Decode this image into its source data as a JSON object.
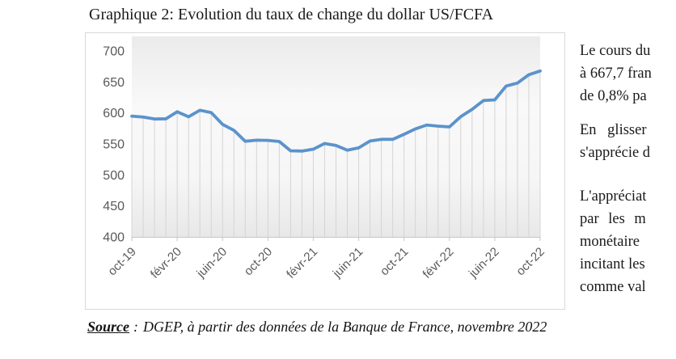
{
  "page_title": "Graphique 2: Evolution du taux de change du dollar US/FCFA",
  "chart_data": {
    "type": "line",
    "title": "",
    "xlabel": "",
    "ylabel": "",
    "x": [
      "oct-19",
      "nov-19",
      "déc-19",
      "janv-20",
      "févr-20",
      "mars-20",
      "avr-20",
      "mai-20",
      "juin-20",
      "juil-20",
      "août-20",
      "sept-20",
      "oct-20",
      "nov-20",
      "déc-20",
      "janv-21",
      "févr-21",
      "mars-21",
      "avr-21",
      "mai-21",
      "juin-21",
      "juil-21",
      "août-21",
      "sept-21",
      "oct-21",
      "nov-21",
      "déc-21",
      "janv-22",
      "févr-22",
      "mars-22",
      "avr-22",
      "mai-22",
      "juin-22",
      "juil-22",
      "août-22",
      "sept-22",
      "oct-22"
    ],
    "values": [
      594.8,
      593.4,
      590.2,
      590.5,
      601.9,
      593.8,
      604.3,
      600.6,
      581.5,
      572.0,
      554.3,
      556.0,
      555.7,
      553.9,
      538.9,
      538.5,
      541.5,
      550.7,
      547.5,
      539.9,
      543.7,
      554.7,
      557.4,
      557.4,
      565.5,
      574.2,
      580.5,
      578.7,
      577.5,
      594.0,
      605.8,
      620.0,
      621.1,
      643.3,
      648.2,
      661.6,
      667.7
    ],
    "x_tick_labels": [
      "oct-19",
      "févr-20",
      "juin-20",
      "oct-20",
      "févr-21",
      "juin-21",
      "oct-21",
      "févr-22",
      "juin-22",
      "oct-22"
    ],
    "x_tick_every": 4,
    "ylim": [
      400,
      700
    ],
    "y_ticks": [
      700,
      650,
      600,
      550,
      500,
      450,
      400
    ],
    "grid": false,
    "legend": "none",
    "droplines": true,
    "line_color": "#5b93cc",
    "dropline_color": "#d4d4d4",
    "axis_color": "#c6c6c6",
    "tick_label_color": "#595959"
  },
  "right_column": {
    "paragraphs": [
      {
        "lines": [
          "Le cours du",
          "à 667,7 fran",
          "de 0,8% pa"
        ]
      },
      {
        "lines": [
          "En glisser",
          "s'apprécie d"
        ]
      },
      {
        "lines": [
          "L'appréciat",
          "par les m",
          "monétaire",
          "incitant les",
          "comme val"
        ]
      }
    ]
  },
  "source": {
    "label": "Source",
    "colon": ":",
    "text": "DGEP, à partir des données de la Banque de France, novembre 2022"
  }
}
